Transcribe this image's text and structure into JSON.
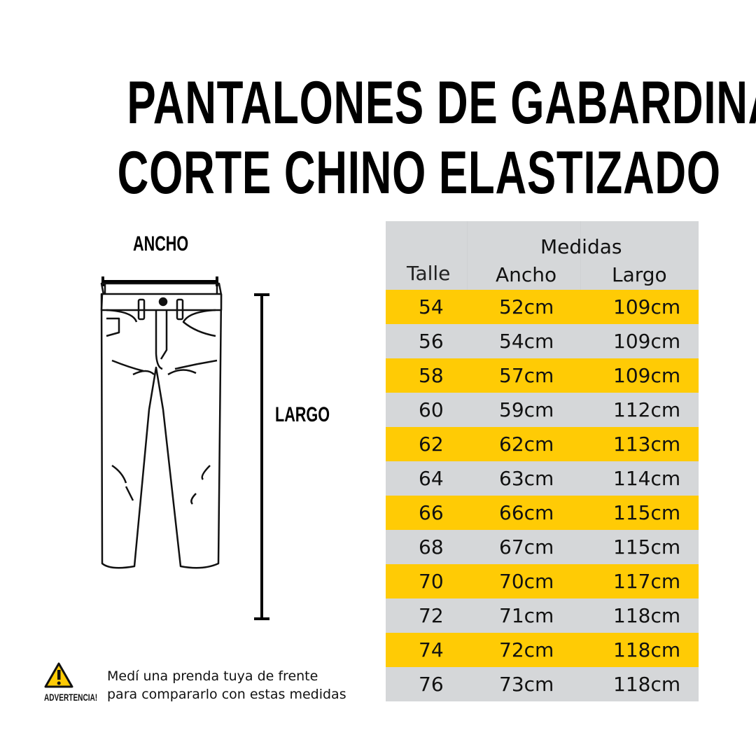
{
  "title": {
    "line1": "PANTALONES DE GABARDINA",
    "line2": "CORTE CHINO ELASTIZADO"
  },
  "diagram": {
    "width_label": "ANCHO",
    "length_label": "LARGO"
  },
  "table": {
    "group_header": "Medidas",
    "columns": [
      "Talle",
      "Ancho",
      "Largo"
    ],
    "rows": [
      [
        "54",
        "52cm",
        "109cm"
      ],
      [
        "56",
        "54cm",
        "109cm"
      ],
      [
        "58",
        "57cm",
        "109cm"
      ],
      [
        "60",
        "59cm",
        "112cm"
      ],
      [
        "62",
        "62cm",
        "113cm"
      ],
      [
        "64",
        "63cm",
        "114cm"
      ],
      [
        "66",
        "66cm",
        "115cm"
      ],
      [
        "68",
        "67cm",
        "115cm"
      ],
      [
        "70",
        "70cm",
        "117cm"
      ],
      [
        "72",
        "71cm",
        "118cm"
      ],
      [
        "74",
        "72cm",
        "118cm"
      ],
      [
        "76",
        "73cm",
        "118cm"
      ]
    ],
    "colors": {
      "highlight": "#ffcb05",
      "base": "#d5d7d9"
    }
  },
  "warning": {
    "icon": "warning-triangle-icon",
    "label": "ADVERTENCIA!",
    "line1": "Medí una prenda tuya de frente",
    "line2": "para compararlo con estas medidas"
  }
}
